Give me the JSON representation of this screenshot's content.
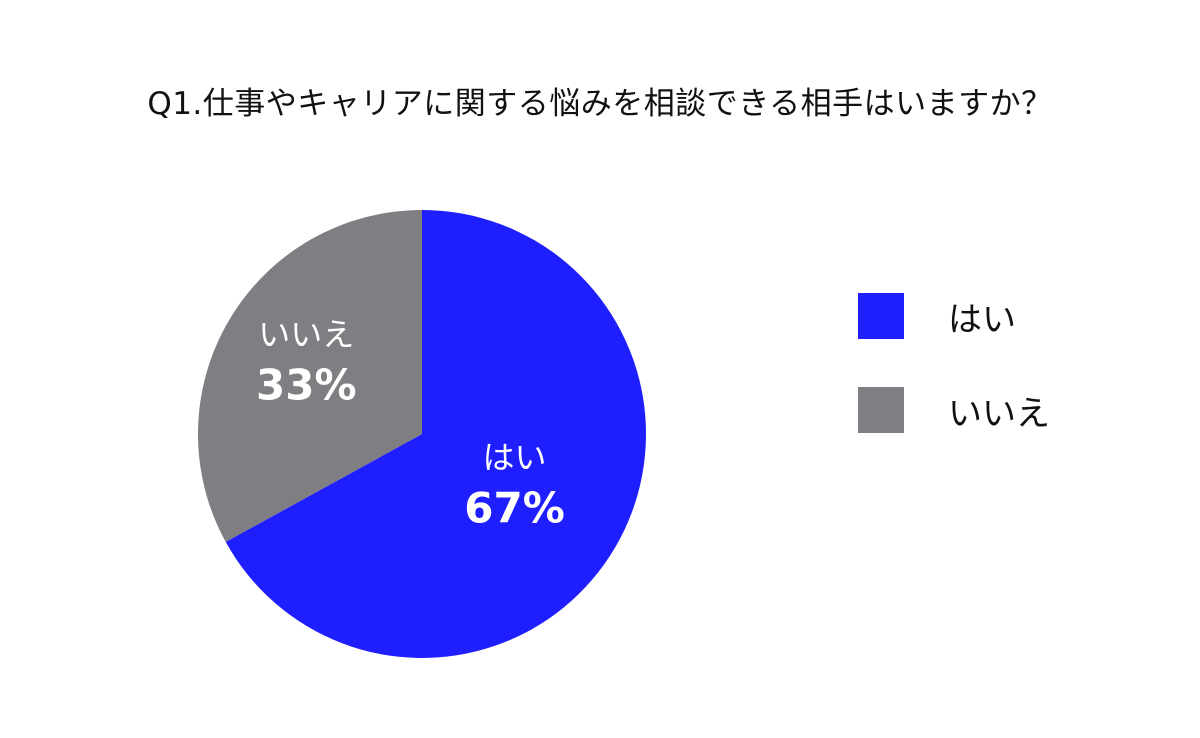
{
  "chart_data": {
    "type": "pie",
    "title": "Q1.仕事やキャリアに関する悩みを相談できる相手はいますか？",
    "categories": [
      "はい",
      "いいえ"
    ],
    "values": [
      67,
      33
    ],
    "unit": "%",
    "value_labels": [
      "67%",
      "33%"
    ],
    "colors": [
      "#1e1eff",
      "#7f7e82"
    ],
    "legend": "right",
    "start_angle": "12 o'clock, clockwise"
  }
}
